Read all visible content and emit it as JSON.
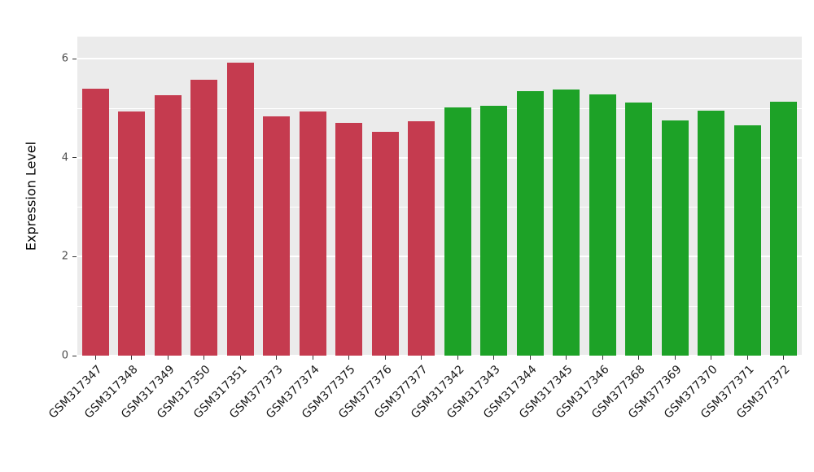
{
  "chart_data": {
    "type": "bar",
    "title": "",
    "xlabel": "",
    "ylabel": "Expression Level",
    "ylim": [
      0,
      6.45
    ],
    "yticks": [
      0,
      2,
      4,
      6
    ],
    "minor_gridlines": [
      1,
      3,
      5
    ],
    "grid": "on",
    "legend": "none",
    "categories": [
      "GSM317347",
      "GSM317348",
      "GSM317349",
      "GSM317350",
      "GSM317351",
      "GSM377373",
      "GSM377374",
      "GSM377375",
      "GSM377376",
      "GSM377377",
      "GSM317342",
      "GSM317343",
      "GSM317344",
      "GSM317345",
      "GSM317346",
      "GSM377368",
      "GSM377369",
      "GSM377370",
      "GSM377371",
      "GSM377372"
    ],
    "values": [
      5.4,
      4.93,
      5.27,
      5.57,
      5.93,
      4.83,
      4.93,
      4.7,
      4.53,
      4.74,
      5.02,
      5.05,
      5.35,
      5.38,
      5.28,
      5.12,
      4.75,
      4.95,
      4.65,
      5.13
    ],
    "bar_colors": [
      "#C53B4F",
      "#C53B4F",
      "#C53B4F",
      "#C53B4F",
      "#C53B4F",
      "#C53B4F",
      "#C53B4F",
      "#C53B4F",
      "#C53B4F",
      "#C53B4F",
      "#1DA227",
      "#1DA227",
      "#1DA227",
      "#1DA227",
      "#1DA227",
      "#1DA227",
      "#1DA227",
      "#1DA227",
      "#1DA227",
      "#1DA227"
    ],
    "colors": {
      "panel_background": "#EBEBEB",
      "gridline": "#FFFFFF",
      "left_group": "#C53B4F",
      "right_group": "#1DA227"
    }
  }
}
